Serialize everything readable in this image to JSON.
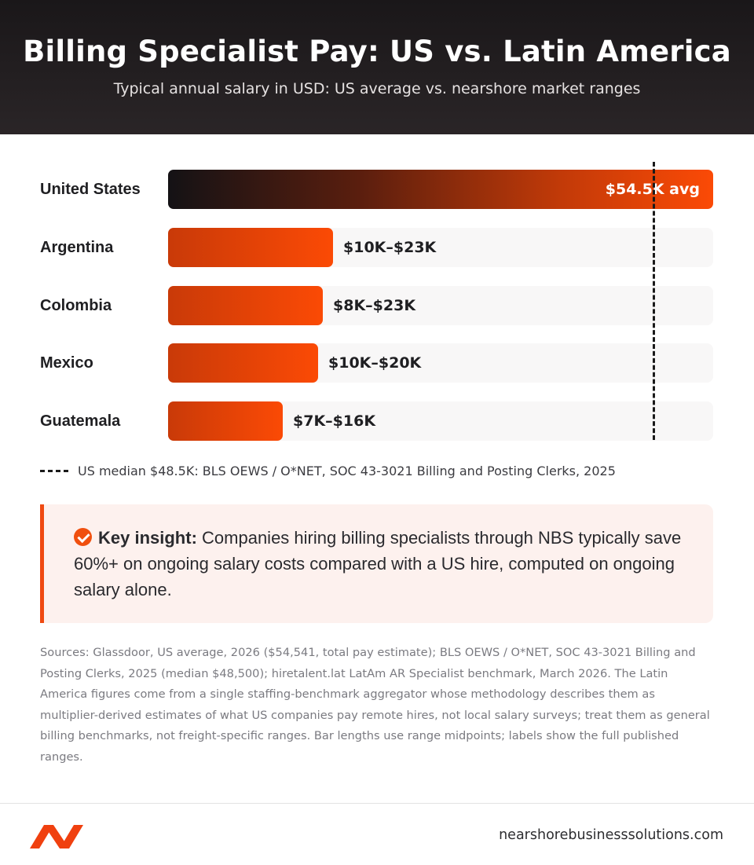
{
  "header": {
    "title": "Billing Specialist Pay: US vs. Latin America",
    "subtitle": "Typical annual salary in USD: US average vs. nearshore market ranges"
  },
  "chart_data": {
    "type": "bar",
    "orientation": "horizontal",
    "categories": [
      "United States",
      "Argentina",
      "Colombia",
      "Mexico",
      "Guatemala"
    ],
    "series": [
      {
        "values": [
          54.5,
          16.5,
          15.5,
          15,
          11.5
        ]
      }
    ],
    "ranges": [
      null,
      [
        10,
        23
      ],
      [
        8,
        23
      ],
      [
        10,
        20
      ],
      [
        7,
        16
      ]
    ],
    "data_labels": [
      "$54.5K avg",
      "$10K–$23K",
      "$8K–$23K",
      "$10K–$20K",
      "$7K–$16K"
    ],
    "reference_line": {
      "value": 48.5
    },
    "xlim": [
      0,
      54.5
    ],
    "grid": false,
    "legend": "bottom-left"
  },
  "legend": {
    "text": "US median $48.5K: BLS OEWS / O*NET, SOC 43-3021 Billing and Posting Clerks, 2025"
  },
  "insight": {
    "label": "Key insight:",
    "text": "Companies hiring billing specialists through NBS typically save 60%+ on ongoing salary costs compared with a US hire, computed on ongoing salary alone."
  },
  "sources": "Sources: Glassdoor, US average, 2026 ($54,541, total pay estimate); BLS OEWS / O*NET, SOC 43-3021 Billing and Posting Clerks, 2025 (median $48,500); hiretalent.lat LatAm AR Specialist benchmark, March 2026. The Latin America figures come from a single staffing-benchmark aggregator whose methodology describes them as multiplier-derived estimates of what US companies pay remote hires, not local salary surveys; treat them as general billing benchmarks, not freight-specific ranges. Bar lengths use range midpoints; labels show the full published ranges.",
  "footer": {
    "url": "nearshorebusinesssolutions.com"
  },
  "colors": {
    "accent": "#fb4a06",
    "header_bg": "#1a1719",
    "insight_bg": "#fdf1ee"
  }
}
